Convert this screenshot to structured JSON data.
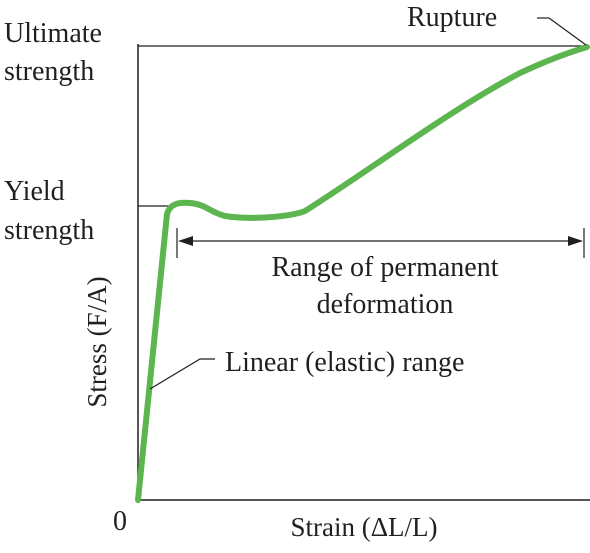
{
  "diagram": {
    "origin_label": "0",
    "x_axis_label": "Strain (ΔL/L)",
    "y_axis_label": "Stress (F/A)",
    "ultimate_label": [
      "Ultimate",
      "strength"
    ],
    "yield_label": [
      "Yield",
      "strength"
    ],
    "rupture_label": "Rupture",
    "range_label": [
      "Range of permanent",
      "deformation"
    ],
    "linear_label": "Linear (elastic) range",
    "curve_color": "#5cb54f",
    "line_color": "#231f20"
  }
}
